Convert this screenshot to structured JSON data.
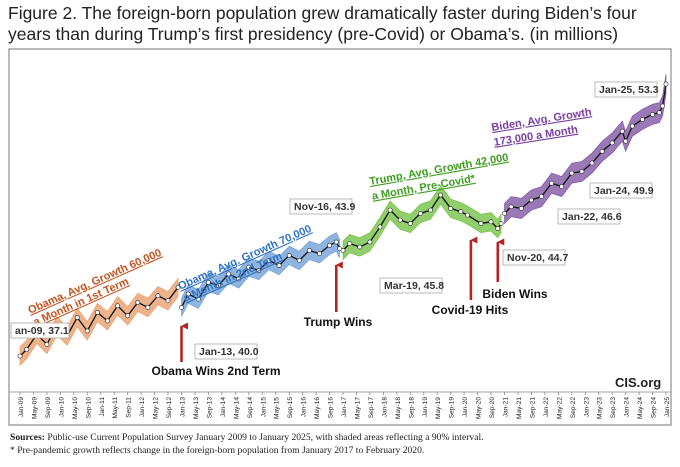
{
  "figure": {
    "title": "Figure 2. The foreign-born population grew dramatically faster during Biden’s four years than during Trump’s first presidency (pre-Covid) or Obama’s. (in millions)",
    "brand": "CIS.org",
    "sources_label": "Sources:",
    "sources_text": " Public-use Current Population Survey January 2009 to January 2025, with shaded areas reflecting a 90% interval.",
    "footnote": "* Pre-pandemic growth reflects change in the foreign-born population from January 2017 to February 2020."
  },
  "colors": {
    "obama1": "#e89a64",
    "obama2": "#6b9bd6",
    "trump": "#6bbf3a",
    "biden": "#7a4c9e",
    "arrow": "#b32424",
    "obama1_text": "#c0551f",
    "obama2_text": "#2f73c4",
    "trump_text": "#3f9d20",
    "biden_text": "#7a3fa0"
  },
  "chart_data": {
    "type": "line",
    "title": "Figure 2. The foreign-born population grew dramatically faster during Biden’s four years than during Trump’s first presidency (pre-Covid) or Obama’s. (in millions)",
    "xlabel": "",
    "ylabel": "",
    "ylim": [
      35.5,
      54.5
    ],
    "grid": false,
    "legend": "none",
    "x_ticks": [
      "Jan-09",
      "May-09",
      "Sep-09",
      "Jan-10",
      "May-10",
      "Sep-10",
      "Jan-11",
      "May-11",
      "Sep-11",
      "Jan-12",
      "May-12",
      "Sep-12",
      "Jan-13",
      "May-13",
      "Sep-13",
      "Jan-14",
      "May-14",
      "Sep-14",
      "Jan-15",
      "May-15",
      "Sep-15",
      "Jan-16",
      "May-16",
      "Sep-16",
      "Jan-17",
      "May-17",
      "Sep-17",
      "Jan-18",
      "May-18",
      "Sep-18",
      "Jan-19",
      "May-19",
      "Sep-19",
      "Jan-20",
      "May-20",
      "Sep-20",
      "Jan-21",
      "May-21",
      "Sep-21",
      "Jan-22",
      "May-22",
      "Sep-22",
      "Jan-23",
      "May-23",
      "Sep-23",
      "Jan-24",
      "May-24",
      "Sep-24",
      "Jan-25"
    ],
    "series": [
      {
        "key": "obama1",
        "band": 0.55,
        "x": [
          "Jan-09",
          "Mar-09",
          "Jun-09",
          "Sep-09",
          "Dec-09",
          "Mar-10",
          "Jun-10",
          "Sep-10",
          "Dec-10",
          "Mar-11",
          "Jun-11",
          "Sep-11",
          "Dec-11",
          "Mar-12",
          "Jun-12",
          "Sep-12",
          "Dec-12"
        ],
        "y": [
          37.1,
          37.5,
          38.4,
          37.8,
          38.9,
          38.3,
          39.4,
          38.6,
          39.7,
          39.2,
          40.1,
          39.5,
          40.3,
          40.0,
          40.7,
          40.4,
          41.2
        ]
      },
      {
        "key": "obama2",
        "band": 0.55,
        "x": [
          "Jan-13",
          "Mar-13",
          "Jun-13",
          "Sep-13",
          "Dec-13",
          "Mar-14",
          "Jun-14",
          "Sep-14",
          "Dec-14",
          "Mar-15",
          "Jun-15",
          "Sep-15",
          "Dec-15",
          "Mar-16",
          "Jun-16",
          "Sep-16",
          "Nov-16",
          "Dec-16"
        ],
        "y": [
          40.0,
          40.8,
          40.5,
          41.5,
          41.3,
          42.0,
          41.7,
          42.4,
          42.2,
          42.8,
          42.5,
          43.1,
          42.8,
          43.4,
          43.2,
          43.7,
          43.9,
          43.5
        ]
      },
      {
        "key": "trump",
        "band": 0.55,
        "x": [
          "Jan-17",
          "Mar-17",
          "Jun-17",
          "Sep-17",
          "Dec-17",
          "Mar-18",
          "Jun-18",
          "Sep-18",
          "Dec-18",
          "Mar-19",
          "Jun-19",
          "Sep-19",
          "Dec-19",
          "Feb-20",
          "Jun-20",
          "Sep-20",
          "Nov-20",
          "Dec-20"
        ],
        "y": [
          43.4,
          43.8,
          43.6,
          43.9,
          44.8,
          45.8,
          45.2,
          45.0,
          45.6,
          45.8,
          46.7,
          45.9,
          45.7,
          45.5,
          45.0,
          45.1,
          44.7,
          45.0
        ]
      },
      {
        "key": "biden",
        "band": 0.6,
        "x": [
          "Jan-21",
          "Mar-21",
          "Jun-21",
          "Sep-21",
          "Dec-21",
          "Mar-22",
          "Jun-22",
          "Sep-22",
          "Dec-22",
          "Mar-23",
          "Jun-23",
          "Sep-23",
          "Dec-23",
          "Jan-24",
          "Mar-24",
          "Jun-24",
          "Sep-24",
          "Nov-24",
          "Dec-24",
          "Jan-25"
        ],
        "y": [
          45.6,
          46.0,
          45.9,
          46.4,
          46.6,
          47.4,
          47.2,
          48.0,
          48.1,
          48.6,
          49.3,
          49.8,
          50.5,
          49.9,
          50.8,
          51.2,
          51.5,
          51.6,
          52.0,
          53.3
        ]
      }
    ],
    "annotations": [
      {
        "key": "ann-jan09",
        "text": "an-09, 37.1"
      },
      {
        "key": "ann-jan13",
        "text": "Jan-13, 40.0"
      },
      {
        "key": "ann-nov16",
        "text": "Nov-16, 43.9"
      },
      {
        "key": "ann-mar19",
        "text": "Mar-19, 45.8"
      },
      {
        "key": "ann-nov20",
        "text": "Nov-20, 44.7"
      },
      {
        "key": "ann-jan22",
        "text": "Jan-22, 46.6"
      },
      {
        "key": "ann-jan24",
        "text": "Jan-24, 49.9"
      },
      {
        "key": "ann-jan25",
        "text": "Jan-25, 53.3"
      }
    ],
    "period_labels": [
      {
        "key": "obama1",
        "lines": [
          "Obama, Avg. Growth 60,000",
          "a Month in 1st Term"
        ]
      },
      {
        "key": "obama2",
        "lines": [
          "Obama, Avg. Growth 70,000",
          "a Month in 2nd Term"
        ]
      },
      {
        "key": "trump",
        "lines": [
          "Trump, Avg. Growth 42,000",
          "a Month, Pre-Covid*"
        ]
      },
      {
        "key": "biden",
        "lines": [
          "Biden, Avg. Growth",
          "173,000 a Month"
        ]
      }
    ],
    "events": [
      {
        "key": "obama-2nd",
        "x": "Jan-13",
        "text": "Obama Wins 2nd Term"
      },
      {
        "key": "trump-wins",
        "x": "Nov-16",
        "text": "Trump Wins"
      },
      {
        "key": "covid",
        "x": "Mar-20",
        "text": "Covid-19 Hits"
      },
      {
        "key": "biden-wins",
        "x": "Nov-20",
        "text": "Biden Wins"
      }
    ]
  }
}
